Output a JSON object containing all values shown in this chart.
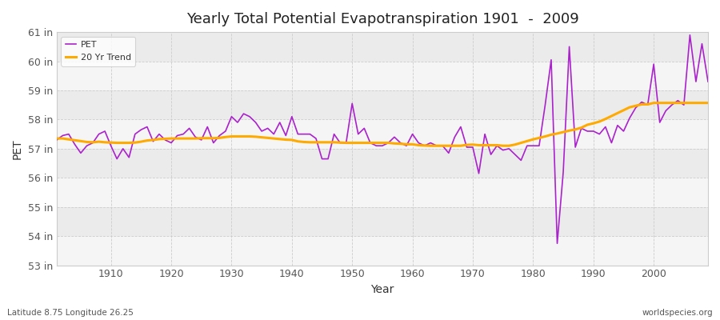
{
  "title": "Yearly Total Potential Evapotranspiration 1901  -  2009",
  "xlabel": "Year",
  "ylabel": "PET",
  "footnote_left": "Latitude 8.75 Longitude 26.25",
  "footnote_right": "worldspecies.org",
  "bg_color": "#ffffff",
  "plot_bg_color": "#ebebeb",
  "band_color": "#f5f5f5",
  "pet_color": "#aa22cc",
  "trend_color": "#ffaa00",
  "years": [
    1901,
    1902,
    1903,
    1904,
    1905,
    1906,
    1907,
    1908,
    1909,
    1910,
    1911,
    1912,
    1913,
    1914,
    1915,
    1916,
    1917,
    1918,
    1919,
    1920,
    1921,
    1922,
    1923,
    1924,
    1925,
    1926,
    1927,
    1928,
    1929,
    1930,
    1931,
    1932,
    1933,
    1934,
    1935,
    1936,
    1937,
    1938,
    1939,
    1940,
    1941,
    1942,
    1943,
    1944,
    1945,
    1946,
    1947,
    1948,
    1949,
    1950,
    1951,
    1952,
    1953,
    1954,
    1955,
    1956,
    1957,
    1958,
    1959,
    1960,
    1961,
    1962,
    1963,
    1964,
    1965,
    1966,
    1967,
    1968,
    1969,
    1970,
    1971,
    1972,
    1973,
    1974,
    1975,
    1976,
    1977,
    1978,
    1979,
    1980,
    1981,
    1982,
    1983,
    1984,
    1985,
    1986,
    1987,
    1988,
    1989,
    1990,
    1991,
    1992,
    1993,
    1994,
    1995,
    1996,
    1997,
    1998,
    1999,
    2000,
    2001,
    2002,
    2003,
    2004,
    2005,
    2006,
    2007,
    2008,
    2009
  ],
  "pet_values": [
    57.3,
    57.45,
    57.5,
    57.15,
    56.85,
    57.1,
    57.2,
    57.5,
    57.6,
    57.1,
    56.65,
    57.0,
    56.7,
    57.5,
    57.65,
    57.75,
    57.25,
    57.5,
    57.3,
    57.2,
    57.45,
    57.5,
    57.7,
    57.4,
    57.3,
    57.75,
    57.2,
    57.45,
    57.6,
    58.1,
    57.9,
    58.2,
    58.1,
    57.9,
    57.6,
    57.7,
    57.5,
    57.9,
    57.45,
    58.1,
    57.5,
    57.5,
    57.5,
    57.35,
    56.65,
    56.65,
    57.5,
    57.2,
    57.2,
    58.55,
    57.5,
    57.7,
    57.2,
    57.1,
    57.1,
    57.2,
    57.4,
    57.2,
    57.1,
    57.5,
    57.2,
    57.1,
    57.2,
    57.1,
    57.1,
    56.85,
    57.4,
    57.75,
    57.05,
    57.05,
    56.15,
    57.5,
    56.8,
    57.1,
    56.95,
    57.0,
    56.8,
    56.6,
    57.1,
    57.1,
    57.1,
    58.5,
    60.05,
    53.75,
    56.2,
    60.5,
    57.05,
    57.7,
    57.6,
    57.6,
    57.5,
    57.75,
    57.2,
    57.8,
    57.6,
    58.05,
    58.4,
    58.6,
    58.5,
    59.9,
    57.9,
    58.3,
    58.5,
    58.65,
    58.5,
    60.9,
    59.3,
    60.6,
    59.3
  ],
  "trend_values": [
    57.35,
    57.35,
    57.32,
    57.29,
    57.26,
    57.23,
    57.22,
    57.24,
    57.22,
    57.21,
    57.2,
    57.2,
    57.2,
    57.21,
    57.24,
    57.28,
    57.3,
    57.33,
    57.34,
    57.35,
    57.35,
    57.35,
    57.35,
    57.35,
    57.36,
    57.36,
    57.36,
    57.37,
    57.4,
    57.42,
    57.42,
    57.42,
    57.42,
    57.41,
    57.39,
    57.37,
    57.35,
    57.33,
    57.31,
    57.3,
    57.25,
    57.23,
    57.22,
    57.22,
    57.22,
    57.22,
    57.22,
    57.21,
    57.2,
    57.2,
    57.2,
    57.2,
    57.2,
    57.2,
    57.2,
    57.2,
    57.18,
    57.17,
    57.15,
    57.15,
    57.12,
    57.11,
    57.1,
    57.1,
    57.1,
    57.1,
    57.1,
    57.1,
    57.13,
    57.14,
    57.12,
    57.12,
    57.12,
    57.12,
    57.1,
    57.1,
    57.14,
    57.2,
    57.26,
    57.32,
    57.37,
    57.42,
    57.48,
    57.52,
    57.57,
    57.62,
    57.66,
    57.72,
    57.82,
    57.87,
    57.93,
    58.02,
    58.12,
    58.22,
    58.32,
    58.42,
    58.47,
    58.52,
    58.52,
    58.57,
    58.57,
    58.57,
    58.57,
    58.57,
    58.57,
    58.57,
    58.57,
    58.57,
    58.57
  ],
  "ylim": [
    53.0,
    61.0
  ],
  "yticks": [
    53,
    54,
    55,
    56,
    57,
    58,
    59,
    60,
    61
  ],
  "xlim": [
    1901,
    2009
  ],
  "xticks": [
    1910,
    1920,
    1930,
    1940,
    1950,
    1960,
    1970,
    1980,
    1990,
    2000
  ]
}
